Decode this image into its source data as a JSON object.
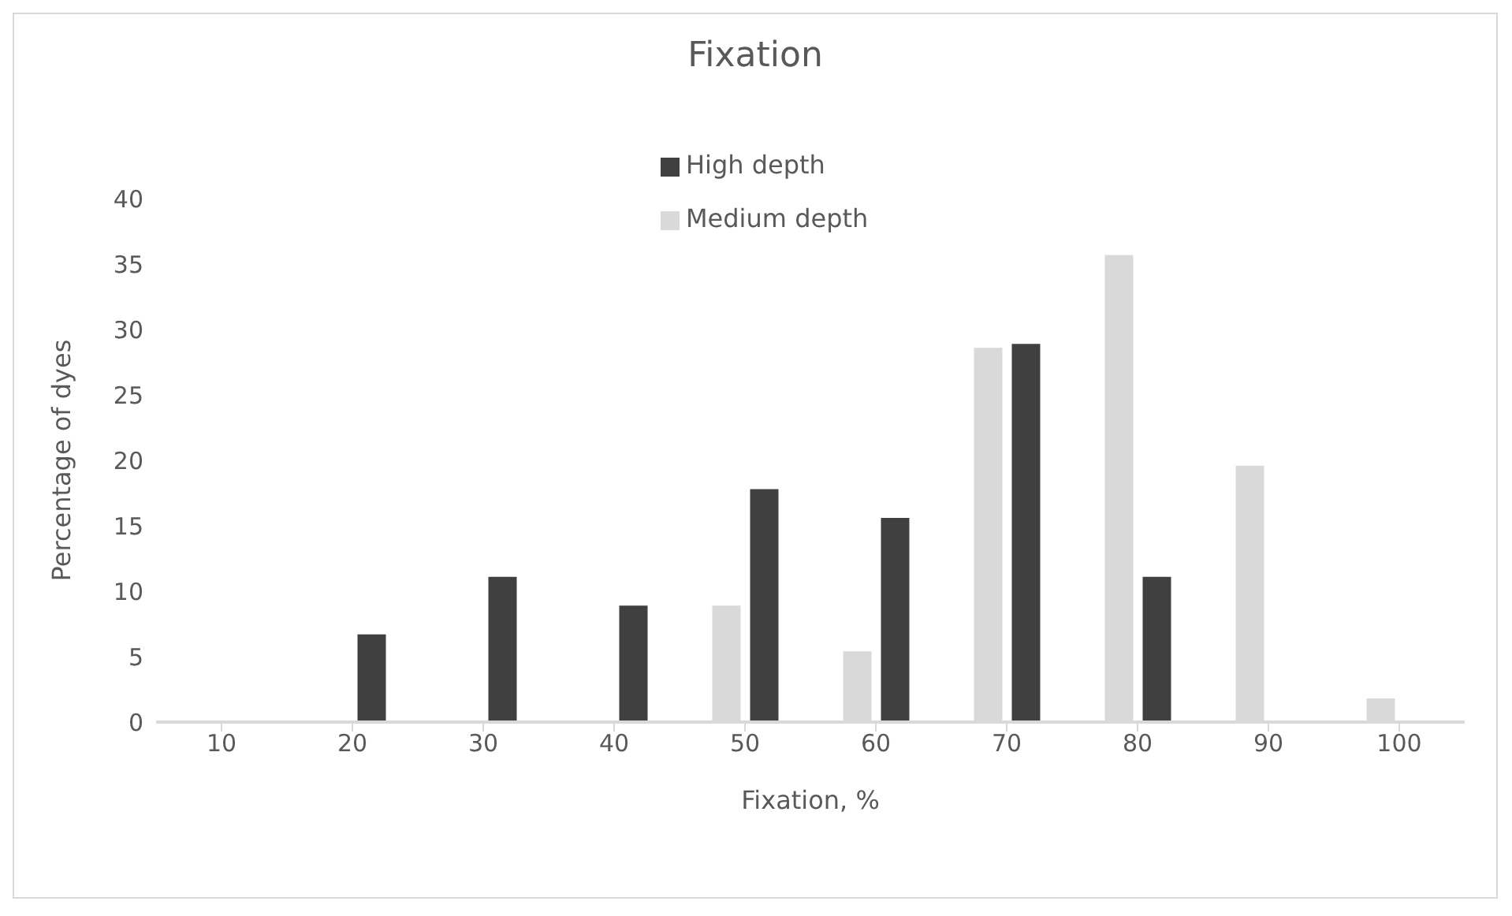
{
  "chart_data": {
    "type": "bar",
    "title": "Fixation",
    "xlabel": "Fixation, %",
    "ylabel": "Percentage of dyes",
    "categories": [
      "10",
      "20",
      "30",
      "40",
      "50",
      "60",
      "70",
      "80",
      "90",
      "100"
    ],
    "series": [
      {
        "name": "Medium depth",
        "color": "#d9d9d9",
        "values": [
          0,
          0,
          0,
          0,
          8.9,
          5.4,
          28.6,
          35.7,
          19.6,
          1.8
        ]
      },
      {
        "name": "High depth",
        "color": "#404040",
        "values": [
          0,
          6.7,
          11.1,
          8.9,
          17.8,
          15.6,
          28.9,
          11.1,
          0,
          0
        ]
      }
    ],
    "ylim": [
      0,
      40
    ],
    "yticks": [
      0,
      5,
      10,
      15,
      20,
      25,
      30,
      35,
      40
    ],
    "grid": false,
    "legend": "top"
  }
}
